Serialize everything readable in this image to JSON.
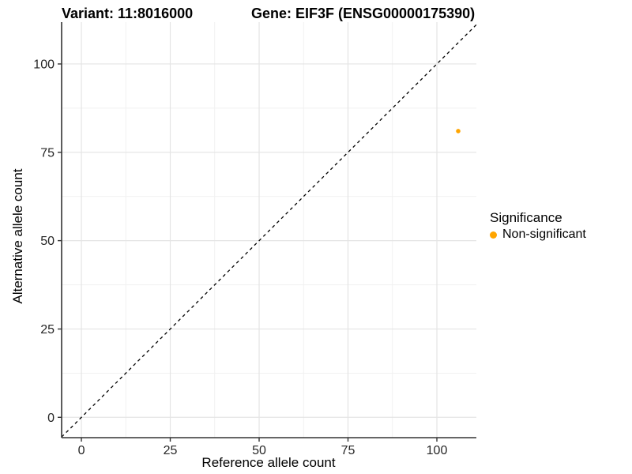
{
  "chart_data": {
    "type": "scatter",
    "titles": {
      "variant": "Variant: 11:8016000",
      "gene": "Gene: EIF3F (ENSG00000175390)"
    },
    "xlabel": "Reference allele count",
    "ylabel": "Alternative allele count",
    "x_ticks": [
      0,
      25,
      50,
      75,
      100
    ],
    "y_ticks": [
      0,
      25,
      50,
      75,
      100
    ],
    "x_minor_ticks": [
      12.5,
      37.5,
      62.5,
      87.5
    ],
    "y_minor_ticks": [
      12.5,
      37.5,
      62.5,
      87.5
    ],
    "xlim": [
      -5.56,
      111.11
    ],
    "ylim": [
      -5.75,
      111.84
    ],
    "grid": true,
    "reference_line": {
      "slope": 1,
      "intercept": 0,
      "style": "dashed",
      "color": "#000000"
    },
    "points": [
      {
        "x": 106,
        "y": 81,
        "series": "Non-significant",
        "color": "#FFA500",
        "radius": 2.8
      }
    ],
    "legend": {
      "title": "Significance",
      "position": "right",
      "items": [
        {
          "label": "Non-significant",
          "color": "#FFA500"
        }
      ]
    },
    "colors": {
      "grid_major": "#E4E4E4",
      "grid_minor": "#F1F1F1",
      "axis": "#333333",
      "tick_text": "#262626",
      "point_orange": "#FFA500"
    }
  }
}
